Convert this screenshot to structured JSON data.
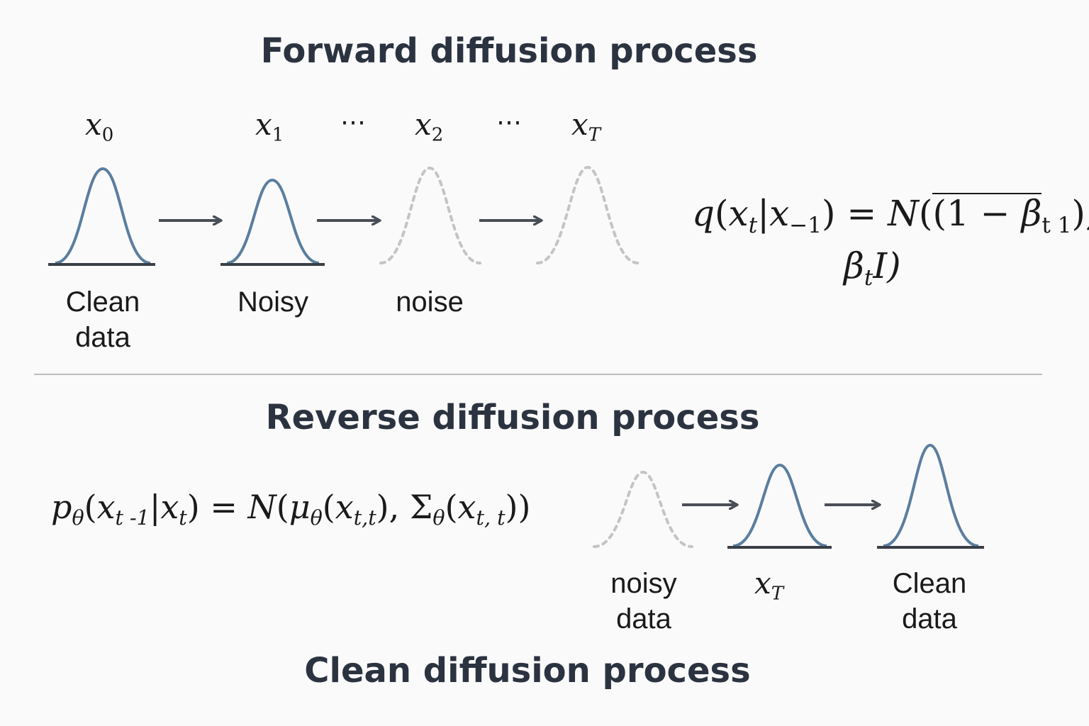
{
  "headings": {
    "forward": "Forward diffusion process",
    "reverse": "Reverse diffusion process",
    "clean": "Clean diffusion process"
  },
  "forward": {
    "states": {
      "s0": {
        "var": "x",
        "sub": "0"
      },
      "s1": {
        "var": "x",
        "sub": "1"
      },
      "s2": {
        "var": "x",
        "sub": "2"
      },
      "sT": {
        "var": "x",
        "sub": "T"
      }
    },
    "ellipsis": "⋯",
    "labels": {
      "clean_line1": "Clean",
      "clean_line2": "data",
      "noisy": "Noisy",
      "noise": "noise"
    },
    "formula": {
      "q": "q",
      "x": "x",
      "t": "t",
      "minus1": "−1",
      "N": "N",
      "one_minus": "(1 −",
      "beta": "β",
      "t1": "t 1",
      "close": ")",
      "comma": "),",
      "beta_t": "β",
      "I": "I)"
    }
  },
  "reverse": {
    "formula": {
      "p": "p",
      "theta": "θ",
      "x": "x",
      "t_minus_1": "t -1",
      "t": "t",
      "N": "N",
      "mu": "μ",
      "tt": "t,t",
      "Sigma": "Σ",
      "tt2": "t, t"
    },
    "labels": {
      "noisy_line1": "noisy",
      "noisy_line2": "data",
      "xT_var": "x",
      "xT_sub": "T",
      "clean_line1": "Clean",
      "clean_line2": "data"
    }
  },
  "colors": {
    "curve": "#5b7e9e",
    "baseline": "#3a3f47",
    "dashed": "#c4c4c4",
    "arrow": "#4a4f57",
    "heading": "#2c3340"
  }
}
